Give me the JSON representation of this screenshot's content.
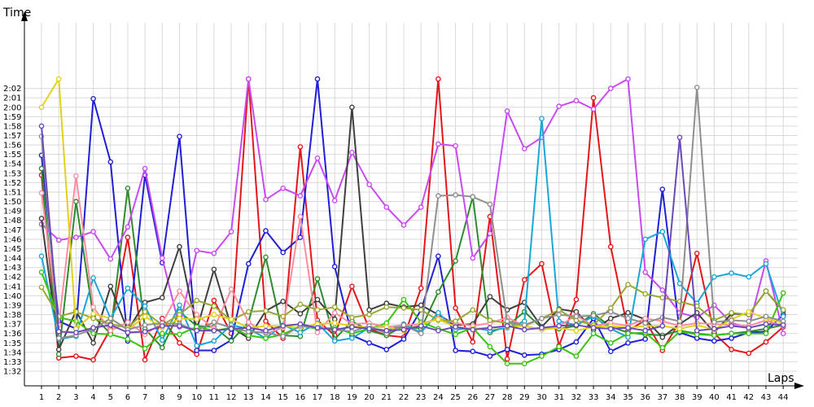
{
  "chart_data": {
    "type": "line",
    "title": "",
    "ylabel": "Time",
    "xlabel": "Laps",
    "x": [
      1,
      2,
      3,
      4,
      5,
      6,
      7,
      8,
      9,
      10,
      11,
      12,
      13,
      14,
      15,
      16,
      17,
      18,
      19,
      20,
      21,
      22,
      23,
      24,
      25,
      26,
      27,
      28,
      29,
      30,
      31,
      32,
      33,
      34,
      35,
      36,
      37,
      38,
      39,
      40,
      41,
      42,
      43,
      44
    ],
    "xlim": [
      1,
      44
    ],
    "ylim_seconds": [
      91.5,
      123
    ],
    "y_ticks": [
      "1:32",
      "1:33",
      "1:34",
      "1:35",
      "1:36",
      "1:37",
      "1:38",
      "1:39",
      "1:40",
      "1:41",
      "1:42",
      "1:43",
      "1:44",
      "1:45",
      "1:46",
      "1:47",
      "1:48",
      "1:49",
      "1:50",
      "1:51",
      "1:52",
      "1:53",
      "1:54",
      "1:55",
      "1:56",
      "1:57",
      "1:58",
      "1:59",
      "2:00",
      "2:01",
      "2:02"
    ],
    "grid": true,
    "marker": "hollow-circle",
    "series": [
      {
        "color": "#e3171b",
        "values": [
          112.8,
          93.4,
          93.6,
          93.2,
          96.5,
          106.2,
          93.2,
          97.6,
          95.0,
          93.8,
          99.5,
          96.0,
          123,
          97.3,
          95.5,
          115.8,
          97.4,
          95.8,
          101.0,
          96.5,
          95.8,
          95.6,
          100.8,
          123,
          98.7,
          95.1,
          108.4,
          93.3,
          101.7,
          103.4,
          94.7,
          99.6,
          121,
          105.2,
          96.3,
          97.4,
          94.2,
          97.3,
          104.5,
          96.0,
          94.3,
          93.9,
          95.1,
          96.7
        ]
      },
      {
        "color": "#1f1fd6",
        "values": [
          114.9,
          97.3,
          96.5,
          120.9,
          114.2,
          95.2,
          112.8,
          103.5,
          116.9,
          94.2,
          94.2,
          95.3,
          103.4,
          106.9,
          104.6,
          106.2,
          123,
          103.1,
          95.8,
          95.0,
          94.3,
          95.4,
          98.5,
          104.2,
          94.2,
          94.1,
          93.6,
          94.3,
          93.7,
          93.8,
          94.3,
          95.1,
          97.6,
          94.1,
          95.0,
          95.4,
          111.3,
          96.1,
          95.5,
          95.2,
          95.5,
          96.1,
          96.2,
          98.0
        ]
      },
      {
        "color": "#2e8b2e",
        "values": [
          113.5,
          93.8,
          110.0,
          97.8,
          96.0,
          111.4,
          96.5,
          94.5,
          98.3,
          96.8,
          96.7,
          95.2,
          97.2,
          104.1,
          95.8,
          95.7,
          101.8,
          95.4,
          97.3,
          96.3,
          95.8,
          96.8,
          96.5,
          100.4,
          103.7,
          110.5,
          96.1,
          96.8,
          98.3,
          96.6,
          96.5,
          96.8,
          98.1,
          96.7,
          96.1,
          95.9,
          95.8,
          96.3,
          96.0,
          95.8,
          96.0,
          96.2,
          96.5,
          96.9
        ]
      },
      {
        "color": "#c94af2",
        "values": [
          107.6,
          105.9,
          106.2,
          106.8,
          103.9,
          107.3,
          113.5,
          104.0,
          96.7,
          104.8,
          104.5,
          106.8,
          123,
          110.2,
          111.4,
          110.6,
          114.6,
          110.1,
          115.2,
          111.8,
          109.4,
          107.5,
          109.4,
          116.1,
          115.9,
          104.0,
          106.6,
          119.6,
          115.6,
          116.8,
          120.1,
          120.7,
          119.8,
          122.0,
          123,
          102.5,
          100.6,
          98.2,
          97.7,
          99.0,
          97.1,
          96.6,
          103.7,
          96.0
        ]
      },
      {
        "color": "#3f3f3f",
        "values": [
          108.2,
          94.3,
          98.4,
          95.0,
          101.0,
          96.3,
          99.3,
          99.8,
          105.2,
          96.4,
          102.8,
          96.7,
          95.5,
          98.4,
          99.4,
          98.1,
          99.6,
          97.5,
          120.0,
          98.5,
          99.2,
          98.8,
          99.0,
          98.0,
          96.9,
          97.0,
          99.9,
          98.5,
          99.3,
          96.7,
          98.6,
          98.3,
          96.4,
          97.6,
          98.2,
          97.5,
          95.6,
          97.0,
          98.2,
          96.1,
          98.1,
          98.0,
          100.5,
          98.4
        ]
      },
      {
        "color": "#1aa6d8",
        "values": [
          104.2,
          95.4,
          95.7,
          101.9,
          97.6,
          100.8,
          98.9,
          95.3,
          99.0,
          94.7,
          95.2,
          96.9,
          96.5,
          95.5,
          96.9,
          96.1,
          97.1,
          95.2,
          95.5,
          96.6,
          96.3,
          97.0,
          96.1,
          98.2,
          96.4,
          96.6,
          96.3,
          96.6,
          97.3,
          118.8,
          97.3,
          96.9,
          97.8,
          96.5,
          95.6,
          106.0,
          106.8,
          101.3,
          99.2,
          102.0,
          102.4,
          102.0,
          103.4,
          97.8
        ]
      },
      {
        "color": "#39c40f",
        "values": [
          102.5,
          97.7,
          97.3,
          96.0,
          95.9,
          95.4,
          94.4,
          96.0,
          95.9,
          96.7,
          96.3,
          96.6,
          95.8,
          95.5,
          95.9,
          96.8,
          96.5,
          96.6,
          96.0,
          96.5,
          97.1,
          99.6,
          97.2,
          96.5,
          95.9,
          96.6,
          94.6,
          92.8,
          92.8,
          93.6,
          94.6,
          93.6,
          96.0,
          95.0,
          96.0,
          96.1,
          94.5,
          96.2,
          95.9,
          95.8,
          96.0,
          96.0,
          96.0,
          100.3
        ]
      },
      {
        "color": "#ff8da1",
        "values": [
          110.9,
          96.9,
          112.7,
          98.8,
          96.3,
          97.2,
          95.9,
          97.1,
          100.5,
          98.0,
          96.5,
          100.7,
          97.2,
          96.0,
          96.6,
          108.4,
          96.1,
          98.2,
          97.0,
          97.1,
          96.7,
          96.9,
          97.0,
          97.6,
          97.1,
          96.8,
          97.1,
          97.7,
          96.8,
          96.4,
          96.8,
          97.9,
          96.8,
          97.1,
          96.8,
          97.6,
          97.3,
          96.8,
          97.1,
          97.0,
          96.9,
          96.8,
          97.4,
          96.8
        ]
      },
      {
        "color": "#98a832",
        "values": [
          100.9,
          97.8,
          98.3,
          97.6,
          97.0,
          96.6,
          98.3,
          96.9,
          98.0,
          99.5,
          98.9,
          97.4,
          98.3,
          98.4,
          97.8,
          99.1,
          98.5,
          98.8,
          97.7,
          98.0,
          98.8,
          98.7,
          98.5,
          97.4,
          97.3,
          98.5,
          97.4,
          97.1,
          96.8,
          97.6,
          98.5,
          97.4,
          96.9,
          98.7,
          101.2,
          100.2,
          99.8,
          99.4,
          98.9,
          97.4,
          98.2,
          98.0,
          100.5,
          98.5
        ]
      },
      {
        "color": "#e0d21a",
        "values": [
          120.0,
          123,
          96.5,
          98.1,
          97.6,
          96.4,
          97.8,
          96.6,
          97.6,
          97.5,
          98.0,
          97.5,
          96.6,
          96.8,
          96.8,
          96.6,
          97.0,
          97.1,
          96.8,
          96.6,
          96.7,
          96.3,
          97.0,
          97.5,
          96.7,
          96.5,
          96.6,
          96.7,
          96.8,
          96.4,
          96.6,
          96.3,
          96.7,
          96.8,
          96.6,
          96.8,
          96.8,
          96.5,
          96.9,
          96.4,
          97.5,
          98.3,
          97.6,
          97.1
        ]
      },
      {
        "color": "#8f8f8f",
        "values": [
          116.9,
          95.5,
          95.8,
          96.5,
          97.6,
          96.4,
          96.9,
          97.1,
          97.0,
          96.3,
          97.2,
          96.6,
          96.2,
          96.1,
          95.7,
          96.8,
          96.6,
          96.4,
          96.2,
          96.8,
          96.0,
          96.9,
          96.0,
          110.6,
          110.7,
          110.5,
          109.7,
          97.3,
          96.9,
          97.6,
          98.0,
          97.8,
          97.9,
          98.3,
          97.6,
          97.1,
          97.7,
          97.3,
          122.1,
          97.2,
          97.4,
          97.3,
          97.8,
          97.3
        ]
      },
      {
        "color": "#6b4ab8",
        "values": [
          118.0,
          96.2,
          96.1,
          96.6,
          96.9,
          96.1,
          96.2,
          96.8,
          96.8,
          96.3,
          96.3,
          96.5,
          96.6,
          96.3,
          96.8,
          97.0,
          96.6,
          96.4,
          96.7,
          96.5,
          96.3,
          96.4,
          96.8,
          96.3,
          96.7,
          96.4,
          96.6,
          96.8,
          96.4,
          96.6,
          96.8,
          96.9,
          96.6,
          96.5,
          96.6,
          96.3,
          96.8,
          116.8,
          96.3,
          96.5,
          96.8,
          96.6,
          97.0,
          96.9
        ]
      }
    ]
  }
}
